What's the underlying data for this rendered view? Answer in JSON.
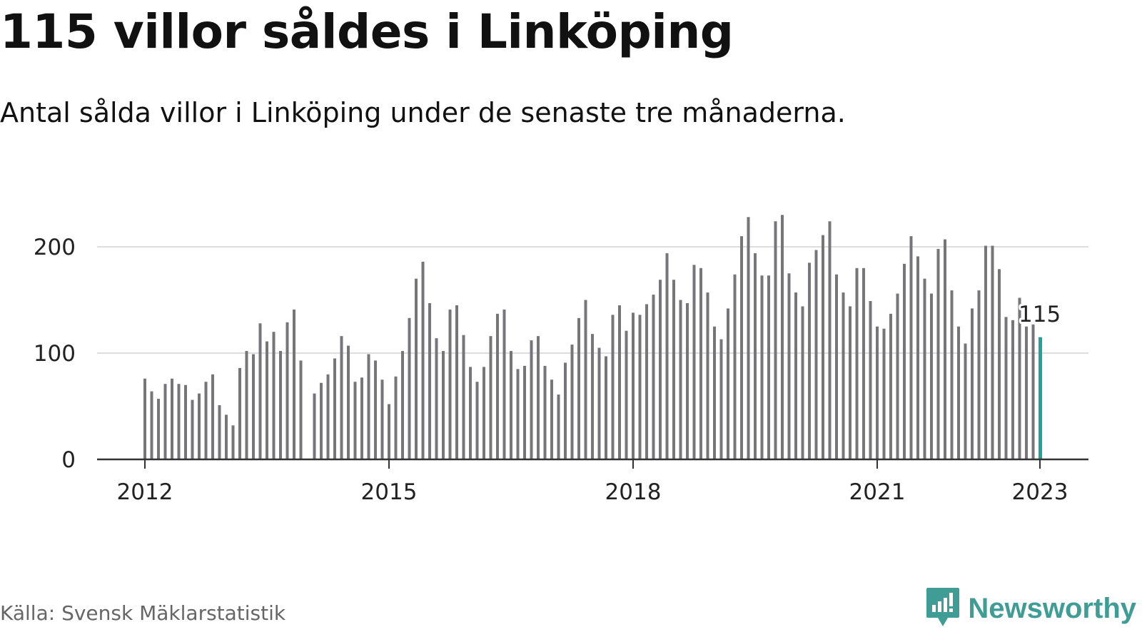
{
  "header": {
    "title": "115 villor såldes i Linköping",
    "subtitle": "Antal sålda villor i Linköping under de senaste tre månaderna."
  },
  "footer": {
    "source": "Källa: Svensk Mäklarstatistik",
    "brand": "Newsworthy",
    "brand_icon": "newsworthy-logo-icon"
  },
  "colors": {
    "bar": "#75757a",
    "highlight": "#1fa39a",
    "grid": "#dddddd",
    "axis": "#333333",
    "brand": "#3f9d96"
  },
  "chart_data": {
    "type": "bar",
    "x_ticks": [
      "2012",
      "2015",
      "2018",
      "2021",
      "2023"
    ],
    "y_ticks": [
      0,
      100,
      200
    ],
    "ylim": [
      0,
      240
    ],
    "grid": true,
    "highlight": {
      "date": "2023-01",
      "value": 115,
      "label": "115"
    },
    "values": [
      {
        "date": "2012-01",
        "value": 76
      },
      {
        "date": "2012-02",
        "value": 64
      },
      {
        "date": "2012-03",
        "value": 57
      },
      {
        "date": "2012-04",
        "value": 71
      },
      {
        "date": "2012-05",
        "value": 76
      },
      {
        "date": "2012-06",
        "value": 71
      },
      {
        "date": "2012-07",
        "value": 70
      },
      {
        "date": "2012-08",
        "value": 56
      },
      {
        "date": "2012-09",
        "value": 62
      },
      {
        "date": "2012-10",
        "value": 73
      },
      {
        "date": "2012-11",
        "value": 80
      },
      {
        "date": "2012-12",
        "value": 51
      },
      {
        "date": "2013-01",
        "value": 42
      },
      {
        "date": "2013-02",
        "value": 32
      },
      {
        "date": "2013-03",
        "value": 86
      },
      {
        "date": "2013-04",
        "value": 102
      },
      {
        "date": "2013-05",
        "value": 99
      },
      {
        "date": "2013-06",
        "value": 128
      },
      {
        "date": "2013-07",
        "value": 111
      },
      {
        "date": "2013-08",
        "value": 120
      },
      {
        "date": "2013-09",
        "value": 102
      },
      {
        "date": "2013-10",
        "value": 129
      },
      {
        "date": "2013-11",
        "value": 141
      },
      {
        "date": "2013-12",
        "value": 93
      },
      {
        "date": "2014-02",
        "value": 62
      },
      {
        "date": "2014-03",
        "value": 72
      },
      {
        "date": "2014-04",
        "value": 80
      },
      {
        "date": "2014-05",
        "value": 95
      },
      {
        "date": "2014-06",
        "value": 116
      },
      {
        "date": "2014-07",
        "value": 107
      },
      {
        "date": "2014-08",
        "value": 73
      },
      {
        "date": "2014-09",
        "value": 77
      },
      {
        "date": "2014-10",
        "value": 99
      },
      {
        "date": "2014-11",
        "value": 93
      },
      {
        "date": "2014-12",
        "value": 75
      },
      {
        "date": "2015-01",
        "value": 52
      },
      {
        "date": "2015-02",
        "value": 78
      },
      {
        "date": "2015-03",
        "value": 102
      },
      {
        "date": "2015-04",
        "value": 133
      },
      {
        "date": "2015-05",
        "value": 170
      },
      {
        "date": "2015-06",
        "value": 186
      },
      {
        "date": "2015-07",
        "value": 147
      },
      {
        "date": "2015-08",
        "value": 114
      },
      {
        "date": "2015-09",
        "value": 102
      },
      {
        "date": "2015-10",
        "value": 141
      },
      {
        "date": "2015-11",
        "value": 145
      },
      {
        "date": "2015-12",
        "value": 117
      },
      {
        "date": "2016-01",
        "value": 87
      },
      {
        "date": "2016-02",
        "value": 73
      },
      {
        "date": "2016-03",
        "value": 87
      },
      {
        "date": "2016-04",
        "value": 116
      },
      {
        "date": "2016-05",
        "value": 137
      },
      {
        "date": "2016-06",
        "value": 141
      },
      {
        "date": "2016-07",
        "value": 102
      },
      {
        "date": "2016-08",
        "value": 85
      },
      {
        "date": "2016-09",
        "value": 88
      },
      {
        "date": "2016-10",
        "value": 112
      },
      {
        "date": "2016-11",
        "value": 116
      },
      {
        "date": "2016-12",
        "value": 88
      },
      {
        "date": "2017-01",
        "value": 75
      },
      {
        "date": "2017-02",
        "value": 61
      },
      {
        "date": "2017-03",
        "value": 91
      },
      {
        "date": "2017-04",
        "value": 108
      },
      {
        "date": "2017-05",
        "value": 133
      },
      {
        "date": "2017-06",
        "value": 150
      },
      {
        "date": "2017-07",
        "value": 118
      },
      {
        "date": "2017-08",
        "value": 105
      },
      {
        "date": "2017-09",
        "value": 97
      },
      {
        "date": "2017-10",
        "value": 136
      },
      {
        "date": "2017-11",
        "value": 145
      },
      {
        "date": "2017-12",
        "value": 121
      },
      {
        "date": "2018-01",
        "value": 138
      },
      {
        "date": "2018-02",
        "value": 136
      },
      {
        "date": "2018-03",
        "value": 146
      },
      {
        "date": "2018-04",
        "value": 155
      },
      {
        "date": "2018-05",
        "value": 169
      },
      {
        "date": "2018-06",
        "value": 194
      },
      {
        "date": "2018-07",
        "value": 169
      },
      {
        "date": "2018-08",
        "value": 150
      },
      {
        "date": "2018-09",
        "value": 147
      },
      {
        "date": "2018-10",
        "value": 183
      },
      {
        "date": "2018-11",
        "value": 180
      },
      {
        "date": "2018-12",
        "value": 157
      },
      {
        "date": "2019-01",
        "value": 125
      },
      {
        "date": "2019-02",
        "value": 113
      },
      {
        "date": "2019-03",
        "value": 142
      },
      {
        "date": "2019-04",
        "value": 174
      },
      {
        "date": "2019-05",
        "value": 210
      },
      {
        "date": "2019-06",
        "value": 228
      },
      {
        "date": "2019-07",
        "value": 194
      },
      {
        "date": "2019-08",
        "value": 173
      },
      {
        "date": "2019-09",
        "value": 173
      },
      {
        "date": "2019-10",
        "value": 224
      },
      {
        "date": "2019-11",
        "value": 230
      },
      {
        "date": "2019-12",
        "value": 175
      },
      {
        "date": "2020-01",
        "value": 157
      },
      {
        "date": "2020-02",
        "value": 144
      },
      {
        "date": "2020-03",
        "value": 185
      },
      {
        "date": "2020-04",
        "value": 197
      },
      {
        "date": "2020-05",
        "value": 211
      },
      {
        "date": "2020-06",
        "value": 224
      },
      {
        "date": "2020-07",
        "value": 174
      },
      {
        "date": "2020-08",
        "value": 157
      },
      {
        "date": "2020-09",
        "value": 144
      },
      {
        "date": "2020-10",
        "value": 180
      },
      {
        "date": "2020-11",
        "value": 180
      },
      {
        "date": "2020-12",
        "value": 149
      },
      {
        "date": "2021-01",
        "value": 125
      },
      {
        "date": "2021-02",
        "value": 123
      },
      {
        "date": "2021-03",
        "value": 137
      },
      {
        "date": "2021-04",
        "value": 156
      },
      {
        "date": "2021-05",
        "value": 184
      },
      {
        "date": "2021-06",
        "value": 210
      },
      {
        "date": "2021-07",
        "value": 191
      },
      {
        "date": "2021-08",
        "value": 170
      },
      {
        "date": "2021-09",
        "value": 156
      },
      {
        "date": "2021-10",
        "value": 198
      },
      {
        "date": "2021-11",
        "value": 207
      },
      {
        "date": "2021-12",
        "value": 159
      },
      {
        "date": "2022-01",
        "value": 125
      },
      {
        "date": "2022-02",
        "value": 109
      },
      {
        "date": "2022-03",
        "value": 142
      },
      {
        "date": "2022-04",
        "value": 159
      },
      {
        "date": "2022-05",
        "value": 201
      },
      {
        "date": "2022-06",
        "value": 201
      },
      {
        "date": "2022-07",
        "value": 179
      },
      {
        "date": "2022-08",
        "value": 134
      },
      {
        "date": "2022-09",
        "value": 131
      },
      {
        "date": "2022-10",
        "value": 152
      },
      {
        "date": "2022-11",
        "value": 125
      },
      {
        "date": "2022-12",
        "value": 127
      },
      {
        "date": "2023-01",
        "value": 115
      }
    ]
  }
}
